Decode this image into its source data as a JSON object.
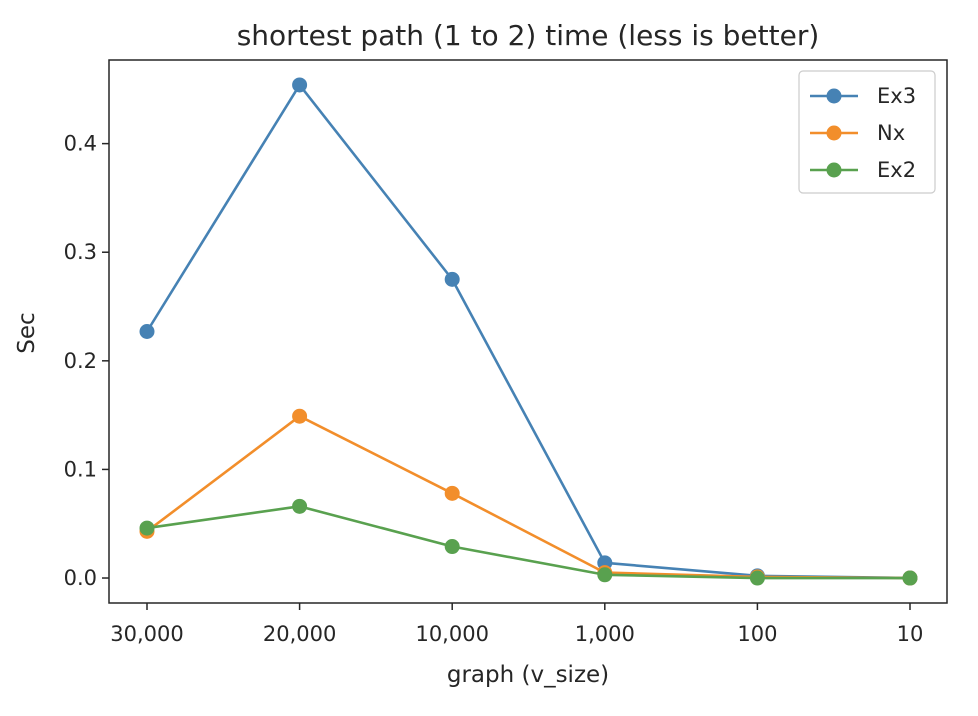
{
  "chart_data": {
    "type": "line",
    "title": "shortest path (1 to 2) time (less is better)",
    "xlabel": "graph (v_size)",
    "ylabel": "Sec",
    "categories": [
      "30,000",
      "20,000",
      "10,000",
      "1,000",
      "100",
      "10"
    ],
    "yticks": [
      "0.0",
      "0.1",
      "0.2",
      "0.3",
      "0.4"
    ],
    "ylim": [
      -0.023,
      0.477
    ],
    "grid": false,
    "legend_position": "top-right",
    "series": [
      {
        "name": "Ex3",
        "color": "#4682b4",
        "values": [
          0.227,
          0.454,
          0.275,
          0.014,
          0.002,
          0.0
        ]
      },
      {
        "name": "Nx",
        "color": "#f28e2b",
        "values": [
          0.043,
          0.149,
          0.078,
          0.005,
          0.001,
          0.0
        ]
      },
      {
        "name": "Ex2",
        "color": "#59a14f",
        "values": [
          0.046,
          0.066,
          0.029,
          0.003,
          0.0,
          0.0
        ]
      }
    ]
  }
}
